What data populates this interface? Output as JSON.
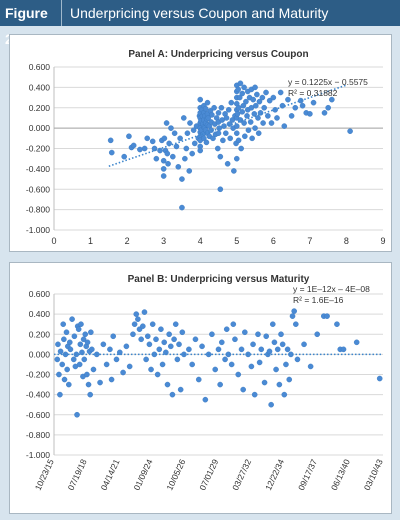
{
  "figure": {
    "label": "Figure 2:",
    "title": "Underpricing versus Coupon and Maturity"
  },
  "colors": {
    "header_bg": "#2d5d86",
    "page_bg": "#d7e4ee",
    "point": "#4a8ad4",
    "trend": "#3e86cc",
    "grid": "#d9d9d9"
  },
  "chart_data": [
    {
      "type": "scatter",
      "title": "Panel A: Underpricing versus Coupon",
      "xlabel": "",
      "ylabel": "",
      "xlim": [
        0,
        9
      ],
      "ylim": [
        -1.0,
        0.6
      ],
      "x_ticks": [
        "0",
        "1",
        "2",
        "3",
        "4",
        "5",
        "6",
        "7",
        "8",
        "9"
      ],
      "y_ticks": [
        "0.600",
        "0.400",
        "0.200",
        "0.000",
        "-0.200",
        "-0.400",
        "-0.600",
        "-0.800",
        "-1.000"
      ],
      "grid": "horizontal",
      "trendline": {
        "slope": 0.1225,
        "intercept": -0.5575,
        "x_range": [
          1.5,
          8.0
        ],
        "style": "dotted"
      },
      "annotations": [
        "y = 0.1225x − 0.5575",
        "R² = 0.31882"
      ],
      "points": [
        [
          1.55,
          -0.12
        ],
        [
          1.58,
          -0.24
        ],
        [
          1.92,
          -0.28
        ],
        [
          2.05,
          -0.08
        ],
        [
          2.12,
          -0.19
        ],
        [
          2.18,
          -0.17
        ],
        [
          2.35,
          -0.21
        ],
        [
          2.48,
          -0.2
        ],
        [
          2.55,
          -0.1
        ],
        [
          2.7,
          -0.13
        ],
        [
          2.75,
          -0.2
        ],
        [
          2.8,
          -0.3
        ],
        [
          2.9,
          -0.22
        ],
        [
          2.95,
          -0.12
        ],
        [
          3.0,
          -0.4
        ],
        [
          3.0,
          -0.47
        ],
        [
          3.0,
          -0.32
        ],
        [
          3.02,
          -0.1
        ],
        [
          3.05,
          -0.22
        ],
        [
          3.08,
          0.05
        ],
        [
          3.1,
          -0.25
        ],
        [
          3.12,
          -0.35
        ],
        [
          3.15,
          -0.15
        ],
        [
          3.2,
          0.0
        ],
        [
          3.25,
          -0.28
        ],
        [
          3.3,
          -0.05
        ],
        [
          3.35,
          -0.18
        ],
        [
          3.4,
          -0.38
        ],
        [
          3.45,
          -0.1
        ],
        [
          3.5,
          -0.78
        ],
        [
          3.5,
          -0.5
        ],
        [
          3.55,
          0.1
        ],
        [
          3.58,
          -0.3
        ],
        [
          3.62,
          -0.2
        ],
        [
          3.65,
          -0.05
        ],
        [
          3.7,
          -0.42
        ],
        [
          3.72,
          0.05
        ],
        [
          3.78,
          -0.25
        ],
        [
          3.82,
          -0.02
        ],
        [
          3.85,
          -0.15
        ],
        [
          3.9,
          0.02
        ],
        [
          3.95,
          -0.1
        ],
        [
          3.98,
          0.12
        ],
        [
          4.0,
          0.28
        ],
        [
          4.0,
          0.2
        ],
        [
          4.0,
          0.15
        ],
        [
          4.0,
          0.1
        ],
        [
          4.0,
          0.05
        ],
        [
          4.0,
          0.0
        ],
        [
          4.0,
          -0.04
        ],
        [
          4.0,
          -0.08
        ],
        [
          4.0,
          -0.12
        ],
        [
          4.0,
          -0.18
        ],
        [
          4.0,
          -0.22
        ],
        [
          4.02,
          0.07
        ],
        [
          4.03,
          -0.02
        ],
        [
          4.05,
          0.18
        ],
        [
          4.06,
          0.12
        ],
        [
          4.07,
          0.04
        ],
        [
          4.08,
          -0.06
        ],
        [
          4.1,
          0.22
        ],
        [
          4.1,
          0.15
        ],
        [
          4.1,
          0.08
        ],
        [
          4.1,
          0.01
        ],
        [
          4.1,
          -0.1
        ],
        [
          4.12,
          0.0
        ],
        [
          4.13,
          0.12
        ],
        [
          4.15,
          0.19
        ],
        [
          4.15,
          0.05
        ],
        [
          4.15,
          -0.02
        ],
        [
          4.17,
          -0.14
        ],
        [
          4.18,
          0.09
        ],
        [
          4.2,
          0.25
        ],
        [
          4.2,
          0.14
        ],
        [
          4.2,
          0.03
        ],
        [
          4.2,
          -0.05
        ],
        [
          4.22,
          0.1
        ],
        [
          4.25,
          0.02
        ],
        [
          4.25,
          -0.08
        ],
        [
          4.28,
          0.17
        ],
        [
          4.3,
          0.06
        ],
        [
          4.3,
          -0.02
        ],
        [
          4.32,
          0.13
        ],
        [
          4.35,
          -0.1
        ],
        [
          4.38,
          0.2
        ],
        [
          4.4,
          0.04
        ],
        [
          4.42,
          -0.06
        ],
        [
          4.45,
          0.1
        ],
        [
          4.48,
          -0.2
        ],
        [
          4.5,
          0.15
        ],
        [
          4.5,
          0.06
        ],
        [
          4.5,
          -0.05
        ],
        [
          4.52,
          0.0
        ],
        [
          4.55,
          -0.6
        ],
        [
          4.55,
          -0.28
        ],
        [
          4.58,
          0.2
        ],
        [
          4.6,
          0.08
        ],
        [
          4.62,
          -0.12
        ],
        [
          4.65,
          0.02
        ],
        [
          4.68,
          0.14
        ],
        [
          4.7,
          -0.05
        ],
        [
          4.72,
          0.1
        ],
        [
          4.75,
          -0.35
        ],
        [
          4.78,
          0.18
        ],
        [
          4.8,
          0.04
        ],
        [
          4.82,
          -0.1
        ],
        [
          4.85,
          0.25
        ],
        [
          4.88,
          0.08
        ],
        [
          4.9,
          0.0
        ],
        [
          4.92,
          -0.42
        ],
        [
          4.95,
          0.12
        ],
        [
          4.98,
          -0.15
        ],
        [
          5.0,
          0.42
        ],
        [
          5.0,
          0.36
        ],
        [
          5.0,
          0.3
        ],
        [
          5.0,
          0.24
        ],
        [
          5.0,
          0.18
        ],
        [
          5.0,
          0.1
        ],
        [
          5.0,
          0.02
        ],
        [
          5.0,
          -0.05
        ],
        [
          5.0,
          -0.3
        ],
        [
          5.02,
          0.14
        ],
        [
          5.04,
          0.38
        ],
        [
          5.05,
          0.2
        ],
        [
          5.05,
          -0.12
        ],
        [
          5.08,
          0.3
        ],
        [
          5.1,
          0.44
        ],
        [
          5.1,
          0.08
        ],
        [
          5.12,
          -0.2
        ],
        [
          5.15,
          0.34
        ],
        [
          5.15,
          0.16
        ],
        [
          5.18,
          0.22
        ],
        [
          5.2,
          0.4
        ],
        [
          5.2,
          0.05
        ],
        [
          5.22,
          -0.08
        ],
        [
          5.25,
          0.26
        ],
        [
          5.28,
          0.12
        ],
        [
          5.3,
          0.36
        ],
        [
          5.3,
          0.18
        ],
        [
          5.32,
          -0.02
        ],
        [
          5.35,
          0.3
        ],
        [
          5.38,
          0.06
        ],
        [
          5.4,
          0.38
        ],
        [
          5.4,
          0.2
        ],
        [
          5.42,
          -0.1
        ],
        [
          5.45,
          0.28
        ],
        [
          5.48,
          0.14
        ],
        [
          5.5,
          0.4
        ],
        [
          5.5,
          0.0
        ],
        [
          5.52,
          0.22
        ],
        [
          5.55,
          0.33
        ],
        [
          5.58,
          0.1
        ],
        [
          5.6,
          -0.05
        ],
        [
          5.62,
          0.26
        ],
        [
          5.65,
          0.15
        ],
        [
          5.7,
          0.3
        ],
        [
          5.72,
          0.05
        ],
        [
          5.75,
          0.2
        ],
        [
          5.8,
          0.35
        ],
        [
          5.85,
          0.12
        ],
        [
          5.9,
          0.27
        ],
        [
          5.95,
          0.05
        ],
        [
          6.0,
          0.3
        ],
        [
          6.05,
          0.18
        ],
        [
          6.1,
          0.1
        ],
        [
          6.2,
          0.35
        ],
        [
          6.25,
          0.22
        ],
        [
          6.3,
          0.02
        ],
        [
          6.4,
          0.28
        ],
        [
          6.5,
          0.12
        ],
        [
          6.6,
          0.2
        ],
        [
          6.75,
          0.27
        ],
        [
          6.8,
          0.22
        ],
        [
          6.9,
          0.15
        ],
        [
          7.0,
          0.14
        ],
        [
          7.1,
          0.25
        ],
        [
          7.4,
          0.15
        ],
        [
          7.5,
          0.2
        ],
        [
          7.6,
          0.28
        ],
        [
          8.1,
          -0.03
        ]
      ]
    },
    {
      "type": "scatter",
      "title": "Panel B: Underpricing versus Maturity",
      "xlabel": "",
      "ylabel": "",
      "x_ticks": [
        "10/23/15",
        "07/19/18",
        "04/14/21",
        "01/09/24",
        "10/05/26",
        "07/01/29",
        "03/27/32",
        "12/22/34",
        "09/17/37",
        "06/13/40",
        "03/10/43"
      ],
      "ylim": [
        -1.0,
        0.6
      ],
      "y_ticks": [
        "0.600",
        "0.400",
        "0.200",
        "0.000",
        "-0.200",
        "-0.400",
        "-0.600",
        "-0.800",
        "-1.000"
      ],
      "grid": "horizontal",
      "trendline": {
        "slope": 0,
        "intercept": 0,
        "style": "dotted"
      },
      "annotations": [
        "y = 1E–12x – 4E–08",
        "R² = 1.6E–16"
      ],
      "note": "x values are fractions of the date axis span (10/23/15 to 03/10/43)",
      "points": [
        [
          0.01,
          -0.05
        ],
        [
          0.012,
          0.1
        ],
        [
          0.015,
          -0.2
        ],
        [
          0.018,
          -0.4
        ],
        [
          0.02,
          0.03
        ],
        [
          0.025,
          -0.1
        ],
        [
          0.028,
          0.3
        ],
        [
          0.03,
          0.15
        ],
        [
          0.032,
          -0.25
        ],
        [
          0.035,
          0.0
        ],
        [
          0.038,
          0.22
        ],
        [
          0.04,
          -0.15
        ],
        [
          0.042,
          0.08
        ],
        [
          0.045,
          -0.3
        ],
        [
          0.048,
          0.12
        ],
        [
          0.05,
          0.05
        ],
        [
          0.055,
          0.35
        ],
        [
          0.06,
          -0.05
        ],
        [
          0.062,
          0.18
        ],
        [
          0.065,
          -0.12
        ],
        [
          0.068,
          0.0
        ],
        [
          0.07,
          -0.6
        ],
        [
          0.072,
          0.28
        ],
        [
          0.075,
          0.25
        ],
        [
          0.078,
          -0.1
        ],
        [
          0.08,
          0.1
        ],
        [
          0.082,
          0.3
        ],
        [
          0.085,
          0.02
        ],
        [
          0.088,
          -0.22
        ],
        [
          0.09,
          0.15
        ],
        [
          0.092,
          -0.05
        ],
        [
          0.095,
          0.2
        ],
        [
          0.098,
          0.08
        ],
        [
          0.1,
          -0.2
        ],
        [
          0.102,
          0.12
        ],
        [
          0.105,
          -0.3
        ],
        [
          0.108,
          0.03
        ],
        [
          0.11,
          -0.4
        ],
        [
          0.112,
          0.22
        ],
        [
          0.115,
          0.05
        ],
        [
          0.12,
          -0.15
        ],
        [
          0.13,
          0.0
        ],
        [
          0.14,
          -0.28
        ],
        [
          0.15,
          0.1
        ],
        [
          0.16,
          -0.1
        ],
        [
          0.17,
          0.05
        ],
        [
          0.175,
          -0.25
        ],
        [
          0.18,
          0.18
        ],
        [
          0.19,
          -0.05
        ],
        [
          0.2,
          0.02
        ],
        [
          0.21,
          -0.18
        ],
        [
          0.22,
          0.08
        ],
        [
          0.23,
          -0.12
        ],
        [
          0.24,
          0.2
        ],
        [
          0.245,
          0.3
        ],
        [
          0.25,
          0.4
        ],
        [
          0.255,
          0.35
        ],
        [
          0.26,
          0.25
        ],
        [
          0.265,
          0.15
        ],
        [
          0.27,
          0.28
        ],
        [
          0.275,
          0.42
        ],
        [
          0.28,
          -0.05
        ],
        [
          0.285,
          0.18
        ],
        [
          0.29,
          0.1
        ],
        [
          0.295,
          -0.15
        ],
        [
          0.3,
          0.3
        ],
        [
          0.305,
          0.0
        ],
        [
          0.31,
          0.15
        ],
        [
          0.315,
          -0.2
        ],
        [
          0.32,
          0.05
        ],
        [
          0.325,
          0.25
        ],
        [
          0.33,
          -0.1
        ],
        [
          0.335,
          0.12
        ],
        [
          0.34,
          0.02
        ],
        [
          0.345,
          -0.3
        ],
        [
          0.35,
          0.2
        ],
        [
          0.355,
          0.08
        ],
        [
          0.36,
          -0.4
        ],
        [
          0.365,
          0.15
        ],
        [
          0.37,
          0.3
        ],
        [
          0.375,
          -0.05
        ],
        [
          0.38,
          0.1
        ],
        [
          0.385,
          -0.35
        ],
        [
          0.39,
          0.22
        ],
        [
          0.395,
          0.0
        ],
        [
          0.41,
          0.05
        ],
        [
          0.42,
          -0.1
        ],
        [
          0.43,
          0.15
        ],
        [
          0.44,
          -0.25
        ],
        [
          0.45,
          0.08
        ],
        [
          0.46,
          -0.45
        ],
        [
          0.47,
          0.0
        ],
        [
          0.48,
          0.2
        ],
        [
          0.49,
          -0.15
        ],
        [
          0.5,
          0.05
        ],
        [
          0.505,
          -0.3
        ],
        [
          0.51,
          0.12
        ],
        [
          0.52,
          -0.05
        ],
        [
          0.525,
          0.25
        ],
        [
          0.53,
          0.0
        ],
        [
          0.54,
          -0.1
        ],
        [
          0.545,
          0.3
        ],
        [
          0.55,
          0.15
        ],
        [
          0.56,
          -0.2
        ],
        [
          0.57,
          0.05
        ],
        [
          0.575,
          -0.35
        ],
        [
          0.58,
          0.22
        ],
        [
          0.59,
          0.0
        ],
        [
          0.6,
          -0.12
        ],
        [
          0.605,
          0.1
        ],
        [
          0.61,
          -0.4
        ],
        [
          0.62,
          0.2
        ],
        [
          0.625,
          -0.08
        ],
        [
          0.63,
          0.05
        ],
        [
          0.64,
          -0.28
        ],
        [
          0.645,
          0.18
        ],
        [
          0.65,
          0.0
        ],
        [
          0.655,
          0.03
        ],
        [
          0.66,
          -0.5
        ],
        [
          0.665,
          0.3
        ],
        [
          0.67,
          0.12
        ],
        [
          0.675,
          -0.15
        ],
        [
          0.68,
          0.05
        ],
        [
          0.685,
          -0.3
        ],
        [
          0.69,
          0.2
        ],
        [
          0.695,
          0.1
        ],
        [
          0.7,
          -0.4
        ],
        [
          0.705,
          -0.1
        ],
        [
          0.71,
          0.05
        ],
        [
          0.715,
          -0.25
        ],
        [
          0.72,
          0.0
        ],
        [
          0.725,
          0.38
        ],
        [
          0.73,
          0.43
        ],
        [
          0.735,
          0.3
        ],
        [
          0.74,
          -0.05
        ],
        [
          0.76,
          0.1
        ],
        [
          0.78,
          -0.12
        ],
        [
          0.8,
          0.2
        ],
        [
          0.82,
          0.38
        ],
        [
          0.83,
          0.38
        ],
        [
          0.86,
          0.3
        ],
        [
          0.87,
          0.05
        ],
        [
          0.88,
          0.05
        ],
        [
          0.92,
          0.12
        ],
        [
          0.99,
          -0.24
        ]
      ]
    }
  ]
}
